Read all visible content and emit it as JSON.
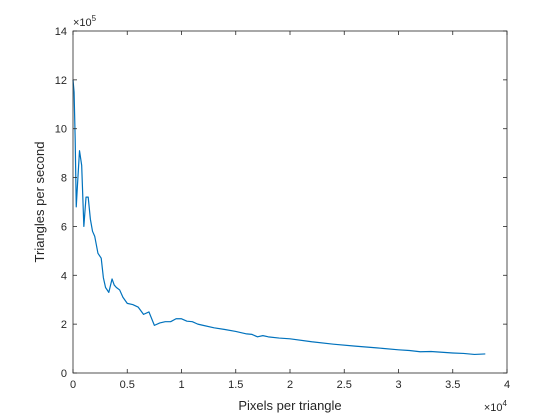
{
  "chart_data": {
    "type": "line",
    "title": "",
    "xlabel": "Pixels per triangle",
    "ylabel": "Triangles per second",
    "x_exponent": {
      "base": "×10",
      "power": "4"
    },
    "y_exponent": {
      "base": "×10",
      "power": "5"
    },
    "xlim": [
      0,
      40000
    ],
    "ylim": [
      0,
      1400000
    ],
    "x_ticks": [
      0,
      5000,
      10000,
      15000,
      20000,
      25000,
      30000,
      35000,
      40000
    ],
    "x_tick_labels": [
      "0",
      "0.5",
      "1",
      "1.5",
      "2",
      "2.5",
      "3",
      "3.5",
      "4"
    ],
    "y_ticks": [
      0,
      200000,
      400000,
      600000,
      800000,
      1000000,
      1200000,
      1400000
    ],
    "y_tick_labels": [
      "0",
      "2",
      "4",
      "6",
      "8",
      "10",
      "12",
      "14"
    ],
    "grid": false,
    "line_color": "#0072bd",
    "series": [
      {
        "name": "",
        "x": [
          0,
          100,
          200,
          300,
          400,
          600,
          800,
          1000,
          1200,
          1400,
          1600,
          1800,
          2000,
          2300,
          2600,
          2800,
          3000,
          3300,
          3600,
          3800,
          4000,
          4300,
          4600,
          5000,
          5500,
          6000,
          6500,
          7000,
          7500,
          8000,
          8500,
          9000,
          9500,
          10000,
          10500,
          11000,
          11500,
          12000,
          13000,
          14000,
          15000,
          16000,
          16500,
          17000,
          17500,
          18000,
          19000,
          20000,
          22000,
          24000,
          26000,
          28000,
          30000,
          31000,
          32000,
          33000,
          34000,
          35000,
          36000,
          37000,
          38000
        ],
        "y": [
          1200000,
          1150000,
          960000,
          680000,
          760000,
          910000,
          850000,
          600000,
          720000,
          720000,
          630000,
          580000,
          560000,
          490000,
          470000,
          390000,
          350000,
          330000,
          385000,
          360000,
          350000,
          340000,
          310000,
          285000,
          280000,
          270000,
          240000,
          250000,
          195000,
          205000,
          210000,
          210000,
          222000,
          222000,
          212000,
          210000,
          200000,
          195000,
          185000,
          178000,
          170000,
          160000,
          158000,
          148000,
          153000,
          148000,
          143000,
          140000,
          128000,
          118000,
          110000,
          103000,
          95000,
          92000,
          87000,
          88000,
          85000,
          82000,
          80000,
          76000,
          78000
        ]
      }
    ]
  }
}
